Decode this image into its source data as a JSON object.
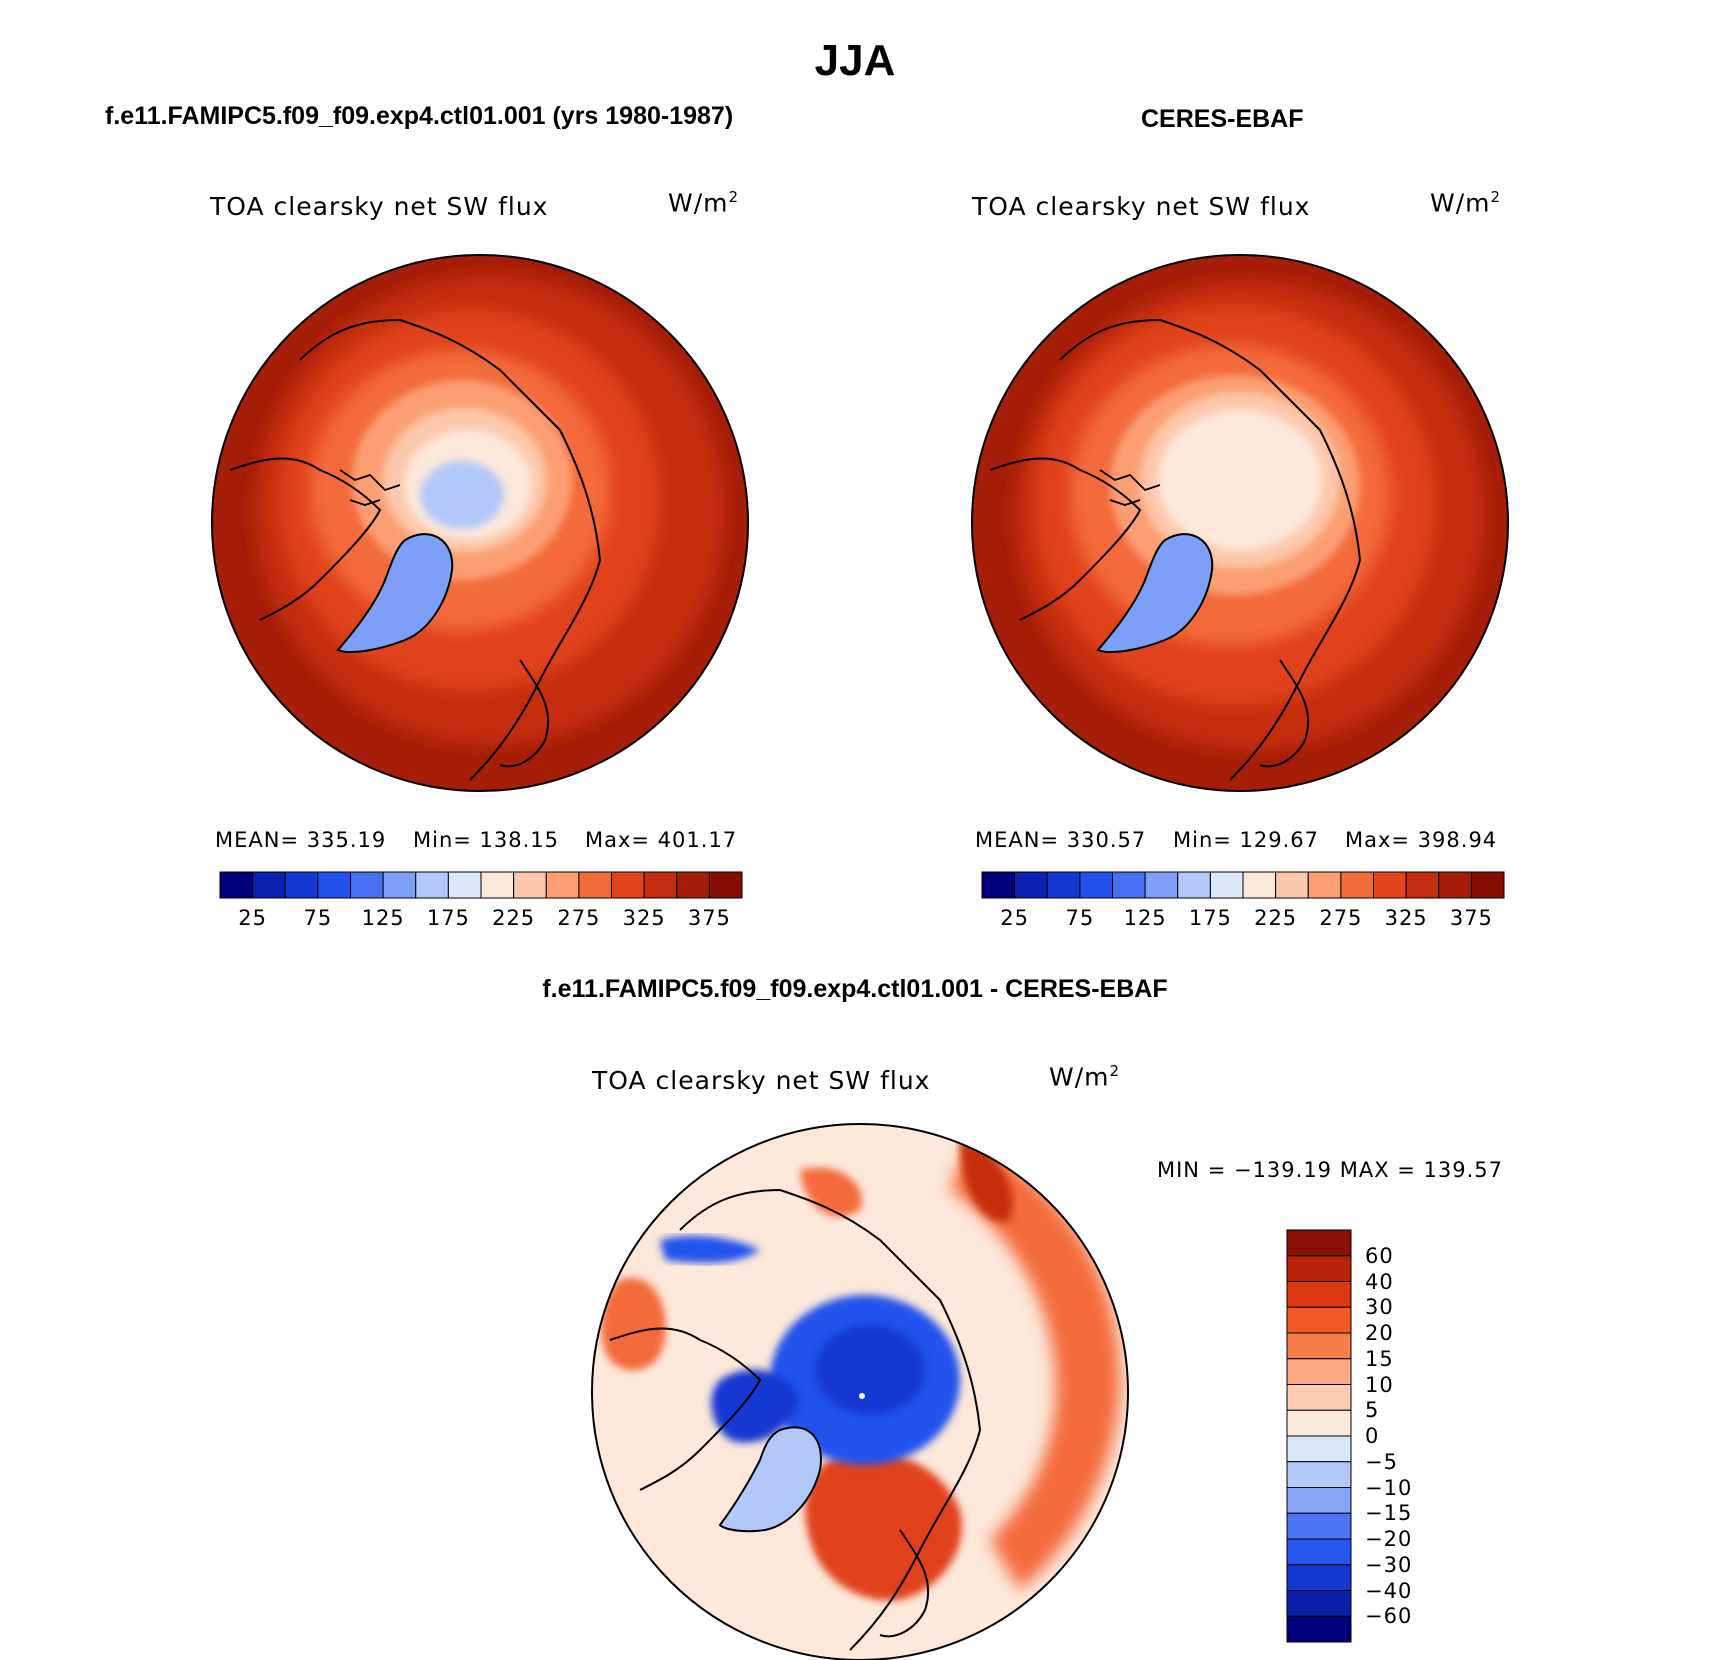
{
  "title": "JJA",
  "panels": [
    {
      "title": "f.e11.FAMIPC5.f09_f09.exp4.ctl01.001 (yrs 1980-1987)",
      "variable": "TOA clearsky net SW flux",
      "units": "W/m",
      "units_power": "2",
      "mean_label": "MEAN= 335.19",
      "min_label": "Min= 138.15",
      "max_label": "Max= 401.17"
    },
    {
      "title": "CERES-EBAF",
      "variable": "TOA clearsky net SW flux",
      "units": "W/m",
      "units_power": "2",
      "mean_label": "MEAN= 330.57",
      "min_label": "Min= 129.67",
      "max_label": "Max= 398.94"
    },
    {
      "title": "f.e11.FAMIPC5.f09_f09.exp4.ctl01.001 - CERES-EBAF",
      "variable": "TOA clearsky net SW flux",
      "units": "W/m",
      "units_power": "2",
      "minmax_label": "MIN = −139.19 MAX = 139.57"
    }
  ],
  "colorbar_abs": {
    "tick_labels": [
      "25",
      "75",
      "125",
      "175",
      "225",
      "275",
      "325",
      "375"
    ],
    "colors": [
      "#00007f",
      "#0a22b4",
      "#1439d2",
      "#2452ed",
      "#476ff3",
      "#7e9ff7",
      "#b2c8fa",
      "#dbe8fb",
      "#fde8da",
      "#fcc8ac",
      "#fb9f72",
      "#f46b3a",
      "#e1431a",
      "#c42e0e",
      "#a61d08",
      "#880e04"
    ]
  },
  "colorbar_diff": {
    "tick_labels": [
      "60",
      "40",
      "30",
      "20",
      "15",
      "10",
      "5",
      "0",
      "−5",
      "−10",
      "−15",
      "−20",
      "−30",
      "−40",
      "−60"
    ],
    "colors": [
      "#8a1004",
      "#b82308",
      "#db3710",
      "#f25a26",
      "#f77d4a",
      "#fba883",
      "#fdcbb2",
      "#fdeadb",
      "#d9e7fb",
      "#b4c9fb",
      "#86a3f6",
      "#4d74f2",
      "#2656ee",
      "#1439d1",
      "#0a20ad",
      "#00007f"
    ]
  },
  "map_colors": {
    "deep_red": "#a61d08",
    "red": "#c42e0e",
    "orange_red": "#e1431a",
    "orange": "#f46b3a",
    "salmon": "#fb9f72",
    "peach": "#fcc8ac",
    "cream": "#fde8da",
    "light_blue": "#b2c8fa",
    "mid_blue": "#7e9ff7",
    "blue": "#2452ed",
    "dark_blue": "#1439d2"
  }
}
